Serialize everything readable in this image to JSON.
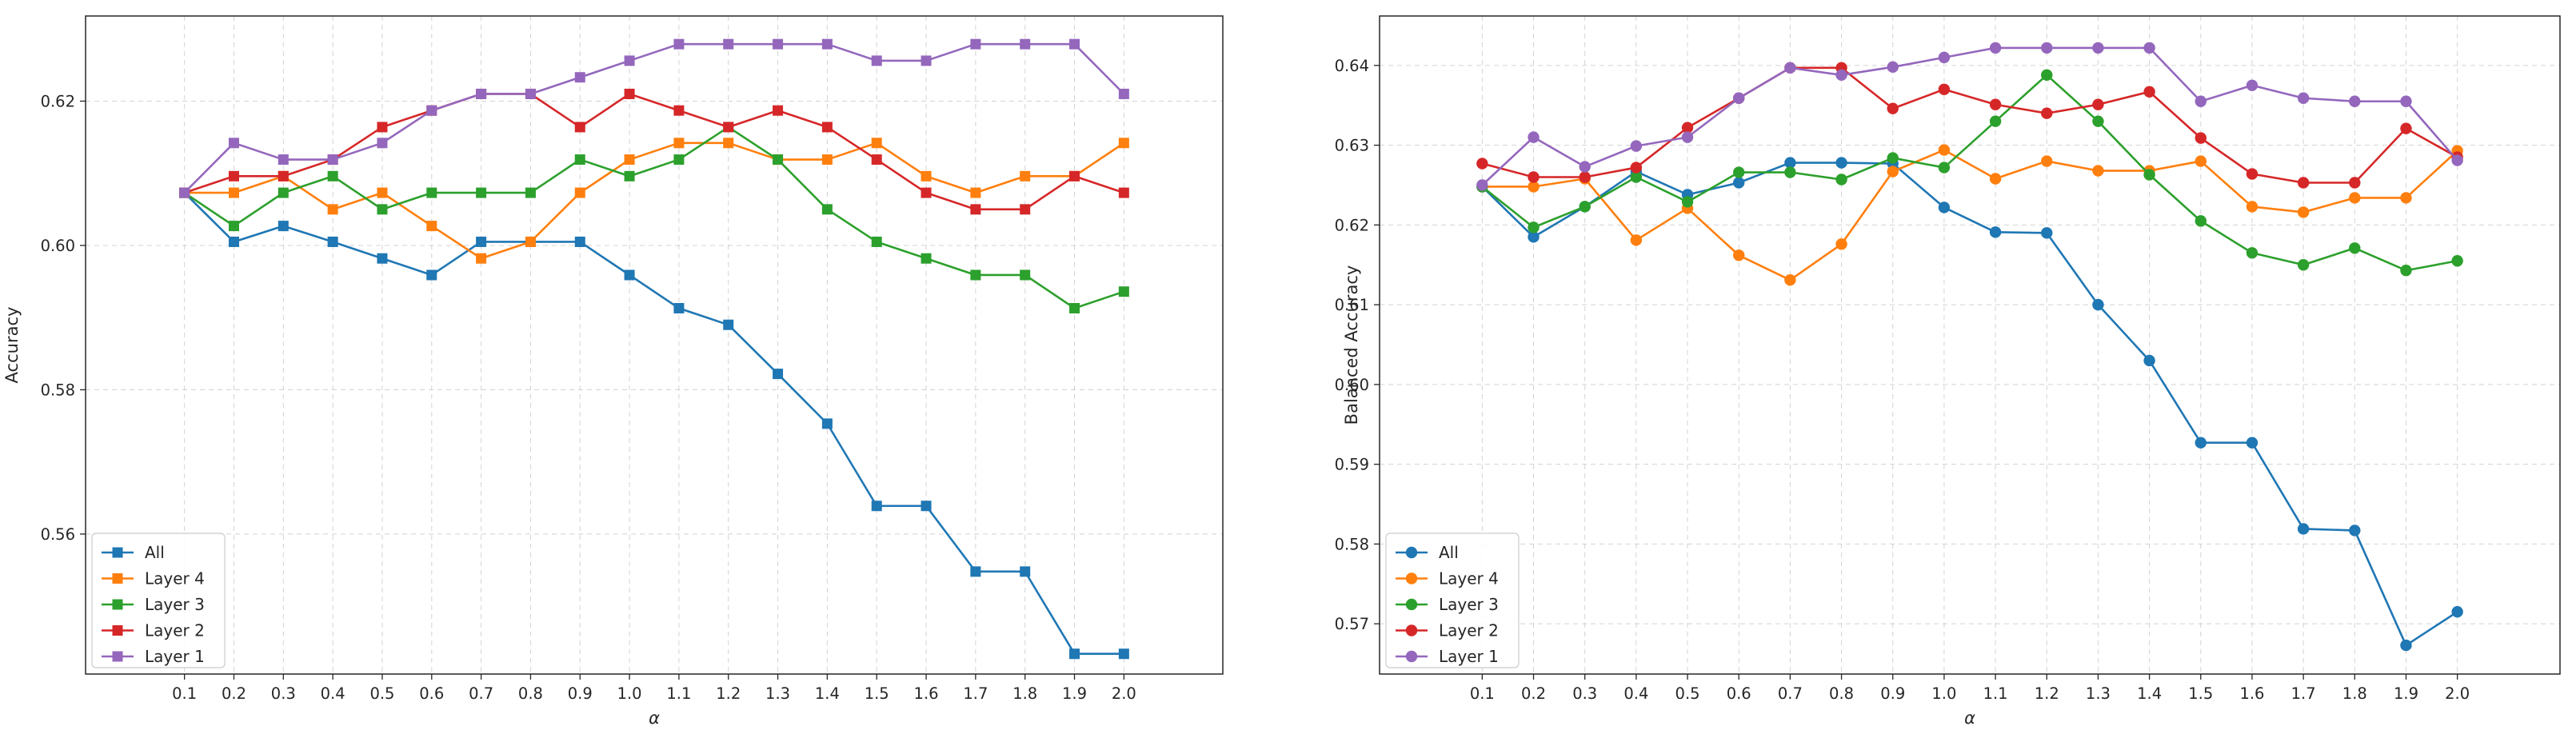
{
  "chart_data": [
    {
      "type": "line",
      "marker": "square",
      "title": "",
      "xlabel": "α",
      "ylabel": "Accuracy",
      "x": [
        0.1,
        0.2,
        0.3,
        0.4,
        0.5,
        0.6,
        0.7,
        0.8,
        0.9,
        1.0,
        1.1,
        1.2,
        1.3,
        1.4,
        1.5,
        1.6,
        1.7,
        1.8,
        1.9,
        2.0
      ],
      "xticklabels": [
        "0.1",
        "0.2",
        "0.3",
        "0.4",
        "0.5",
        "0.6",
        "0.7",
        "0.8",
        "0.9",
        "1.0",
        "1.1",
        "1.2",
        "1.3",
        "1.4",
        "1.5",
        "1.6",
        "1.7",
        "1.8",
        "1.9",
        "2.0"
      ],
      "yticks": [
        0.56,
        0.58,
        0.6,
        0.62
      ],
      "yticklabels": [
        "0.56",
        "0.58",
        "0.60",
        "0.62"
      ],
      "xlim": [
        -0.1,
        2.2
      ],
      "ylim": [
        0.5406,
        0.6318
      ],
      "grid": true,
      "legend_loc": "lower-left",
      "series": [
        {
          "name": "All",
          "color": "#1f77b4",
          "values": [
            0.6073,
            0.6005,
            0.6027,
            0.6005,
            0.5982,
            0.5959,
            0.6005,
            0.6005,
            0.6005,
            0.5959,
            0.5913,
            0.589,
            0.5822,
            0.5753,
            0.5639,
            0.5639,
            0.5548,
            0.5548,
            0.5434,
            0.5434
          ]
        },
        {
          "name": "Layer 4",
          "color": "#ff7f0e",
          "values": [
            0.6073,
            0.6073,
            0.6096,
            0.605,
            0.6073,
            0.6027,
            0.5982,
            0.6005,
            0.6073,
            0.6119,
            0.6142,
            0.6142,
            0.6119,
            0.6119,
            0.6142,
            0.6096,
            0.6073,
            0.6096,
            0.6096,
            0.6142
          ]
        },
        {
          "name": "Layer 3",
          "color": "#2ca02c",
          "values": [
            0.6073,
            0.6027,
            0.6073,
            0.6096,
            0.605,
            0.6073,
            0.6073,
            0.6073,
            0.6119,
            0.6096,
            0.6119,
            0.6164,
            0.6119,
            0.605,
            0.6005,
            0.5982,
            0.5959,
            0.5959,
            0.5913,
            0.5936
          ]
        },
        {
          "name": "Layer 2",
          "color": "#d62728",
          "values": [
            0.6073,
            0.6096,
            0.6096,
            0.6119,
            0.6164,
            0.6187,
            0.621,
            0.621,
            0.6164,
            0.621,
            0.6187,
            0.6164,
            0.6187,
            0.6164,
            0.6119,
            0.6073,
            0.605,
            0.605,
            0.6096,
            0.6073
          ]
        },
        {
          "name": "Layer 1",
          "color": "#9467bd",
          "values": [
            0.6073,
            0.6142,
            0.6119,
            0.6119,
            0.6142,
            0.6187,
            0.621,
            0.621,
            0.6233,
            0.6256,
            0.6279,
            0.6279,
            0.6279,
            0.6279,
            0.6256,
            0.6256,
            0.6279,
            0.6279,
            0.6279,
            0.621
          ]
        }
      ]
    },
    {
      "type": "line",
      "marker": "circle",
      "title": "",
      "xlabel": "α",
      "ylabel": "Balanced Accuracy",
      "x": [
        0.1,
        0.2,
        0.3,
        0.4,
        0.5,
        0.6,
        0.7,
        0.8,
        0.9,
        1.0,
        1.1,
        1.2,
        1.3,
        1.4,
        1.5,
        1.6,
        1.7,
        1.8,
        1.9,
        2.0
      ],
      "xticklabels": [
        "0.1",
        "0.2",
        "0.3",
        "0.4",
        "0.5",
        "0.6",
        "0.7",
        "0.8",
        "0.9",
        "1.0",
        "1.1",
        "1.2",
        "1.3",
        "1.4",
        "1.5",
        "1.6",
        "1.7",
        "1.8",
        "1.9",
        "2.0"
      ],
      "yticks": [
        0.57,
        0.58,
        0.59,
        0.6,
        0.61,
        0.62,
        0.63,
        0.64
      ],
      "yticklabels": [
        "0.57",
        "0.58",
        "0.59",
        "0.60",
        "0.61",
        "0.62",
        "0.63",
        "0.64"
      ],
      "xlim": [
        -0.1,
        2.2
      ],
      "ylim": [
        0.5637,
        0.6462
      ],
      "grid": true,
      "legend_loc": "lower-left",
      "series": [
        {
          "name": "All",
          "color": "#1f77b4",
          "values": [
            0.6248,
            0.6185,
            0.6223,
            0.6267,
            0.6238,
            0.6253,
            0.6278,
            0.6278,
            0.6277,
            0.6222,
            0.6191,
            0.619,
            0.61,
            0.603,
            0.5927,
            0.5927,
            0.5819,
            0.5817,
            0.5673,
            0.5715
          ]
        },
        {
          "name": "Layer 4",
          "color": "#ff7f0e",
          "values": [
            0.6248,
            0.6248,
            0.6258,
            0.6181,
            0.6221,
            0.6162,
            0.6131,
            0.6176,
            0.6267,
            0.6294,
            0.6258,
            0.628,
            0.6268,
            0.6268,
            0.628,
            0.6223,
            0.6216,
            0.6234,
            0.6234,
            0.6293
          ]
        },
        {
          "name": "Layer 3",
          "color": "#2ca02c",
          "values": [
            0.6248,
            0.6197,
            0.6223,
            0.626,
            0.6229,
            0.6266,
            0.6266,
            0.6257,
            0.6284,
            0.6272,
            0.633,
            0.6388,
            0.633,
            0.6263,
            0.6205,
            0.6165,
            0.615,
            0.6171,
            0.6143,
            0.6155
          ]
        },
        {
          "name": "Layer 2",
          "color": "#d62728",
          "values": [
            0.6277,
            0.626,
            0.626,
            0.6272,
            0.6322,
            0.6359,
            0.6397,
            0.6397,
            0.6346,
            0.637,
            0.6351,
            0.634,
            0.6351,
            0.6367,
            0.6309,
            0.6264,
            0.6253,
            0.6253,
            0.6321,
            0.6285
          ]
        },
        {
          "name": "Layer 1",
          "color": "#9467bd",
          "values": [
            0.625,
            0.631,
            0.6273,
            0.6299,
            0.631,
            0.6359,
            0.6397,
            0.6388,
            0.6398,
            0.641,
            0.6422,
            0.6422,
            0.6422,
            0.6422,
            0.6355,
            0.6375,
            0.6359,
            0.6355,
            0.6355,
            0.6281
          ]
        }
      ]
    }
  ]
}
